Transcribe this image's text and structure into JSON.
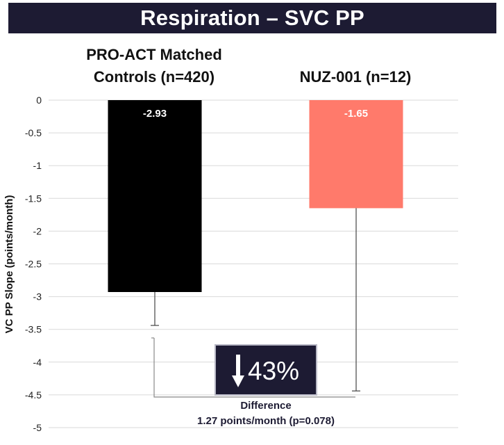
{
  "title": "Respiration – SVC PP",
  "chart_data": {
    "type": "bar",
    "ylabel": "VC PP Slope (points/month)",
    "ylim": [
      -5,
      0
    ],
    "yticks": [
      0,
      -0.5,
      -1,
      -1.5,
      -2,
      -2.5,
      -3,
      -3.5,
      -4,
      -4.5,
      -5
    ],
    "ytick_labels": [
      "0",
      "-0.5",
      "-1",
      "-1.5",
      "-2",
      "-2.5",
      "-3",
      "-3.5",
      "-4",
      "-4.5",
      "-5"
    ],
    "grid": true,
    "categories": [
      "PRO-ACT Matched Controls (n=420)",
      "NUZ-001 (n=12)"
    ],
    "category_lines": [
      [
        "PRO-ACT Matched",
        "Controls (n=420)"
      ],
      [
        "NUZ-001 (n=12)"
      ]
    ],
    "values": [
      -2.93,
      -1.65
    ],
    "value_labels": [
      "-2.93",
      "-1.65"
    ],
    "error_low": [
      -3.44,
      -4.44
    ],
    "colors": [
      "#000000",
      "#ff7a6b"
    ],
    "difference_lines": [
      "Difference",
      "1.27 points/month (p=0.078)"
    ],
    "callout": {
      "text": "43%",
      "arrow": "down-arrow-icon"
    }
  }
}
